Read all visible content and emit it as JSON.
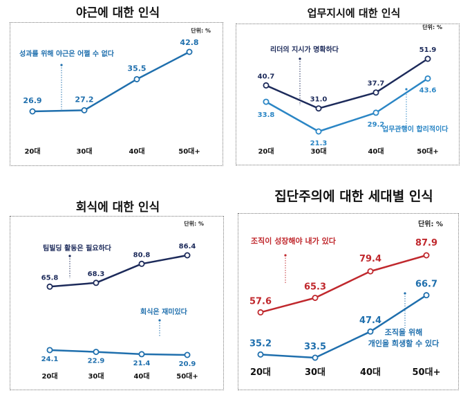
{
  "chart_data": [
    {
      "type": "line",
      "title": "야근에 대한 인식",
      "unit": "단위: %",
      "categories": [
        "20대",
        "30대",
        "40대",
        "50대+"
      ],
      "series": [
        {
          "name": "성과를 위해 야근은 어쩔 수 없다",
          "color": "#1f6fad",
          "values": [
            26.9,
            27.2,
            35.5,
            42.8
          ]
        }
      ],
      "ylim": [
        0,
        60
      ]
    },
    {
      "type": "line",
      "title": "업무지시에 대한 인식",
      "unit": "단위: %",
      "categories": [
        "20대",
        "30대",
        "40대",
        "50대+"
      ],
      "series": [
        {
          "name": "리더의 지시가 명확하다",
          "color": "#1c2a5a",
          "values": [
            40.7,
            31.0,
            37.7,
            51.9
          ]
        },
        {
          "name": "업무관행이 합리적이다",
          "color": "#2b86c5",
          "values": [
            33.8,
            21.3,
            29.2,
            43.6
          ]
        }
      ],
      "ylim": [
        0,
        70
      ]
    },
    {
      "type": "line",
      "title": "회식에 대한 인식",
      "unit": "단위: %",
      "categories": [
        "20대",
        "30대",
        "40대",
        "50대+"
      ],
      "series": [
        {
          "name": "팀빌딩 활동은 필요하다",
          "color": "#1c2a5a",
          "values": [
            65.8,
            68.3,
            80.8,
            86.4
          ]
        },
        {
          "name": "회식은 재미있다",
          "color": "#1f6fad",
          "values": [
            24.1,
            22.9,
            21.4,
            20.9
          ]
        }
      ],
      "ylim": [
        0,
        110
      ]
    },
    {
      "type": "line",
      "title": "집단주의에 대한 세대별 인식",
      "unit": "단위: %",
      "categories": [
        "20대",
        "30대",
        "40대",
        "50대+"
      ],
      "series": [
        {
          "name": "조직이 성장해야 내가 있다",
          "color": "#c0282d",
          "values": [
            57.6,
            65.3,
            79.4,
            87.9
          ]
        },
        {
          "name": "조직을 위해 개인을 희생할 수 있다",
          "color": "#1f6fad",
          "values": [
            35.2,
            33.5,
            47.4,
            66.7
          ]
        }
      ],
      "ylim": [
        0,
        110
      ]
    }
  ]
}
